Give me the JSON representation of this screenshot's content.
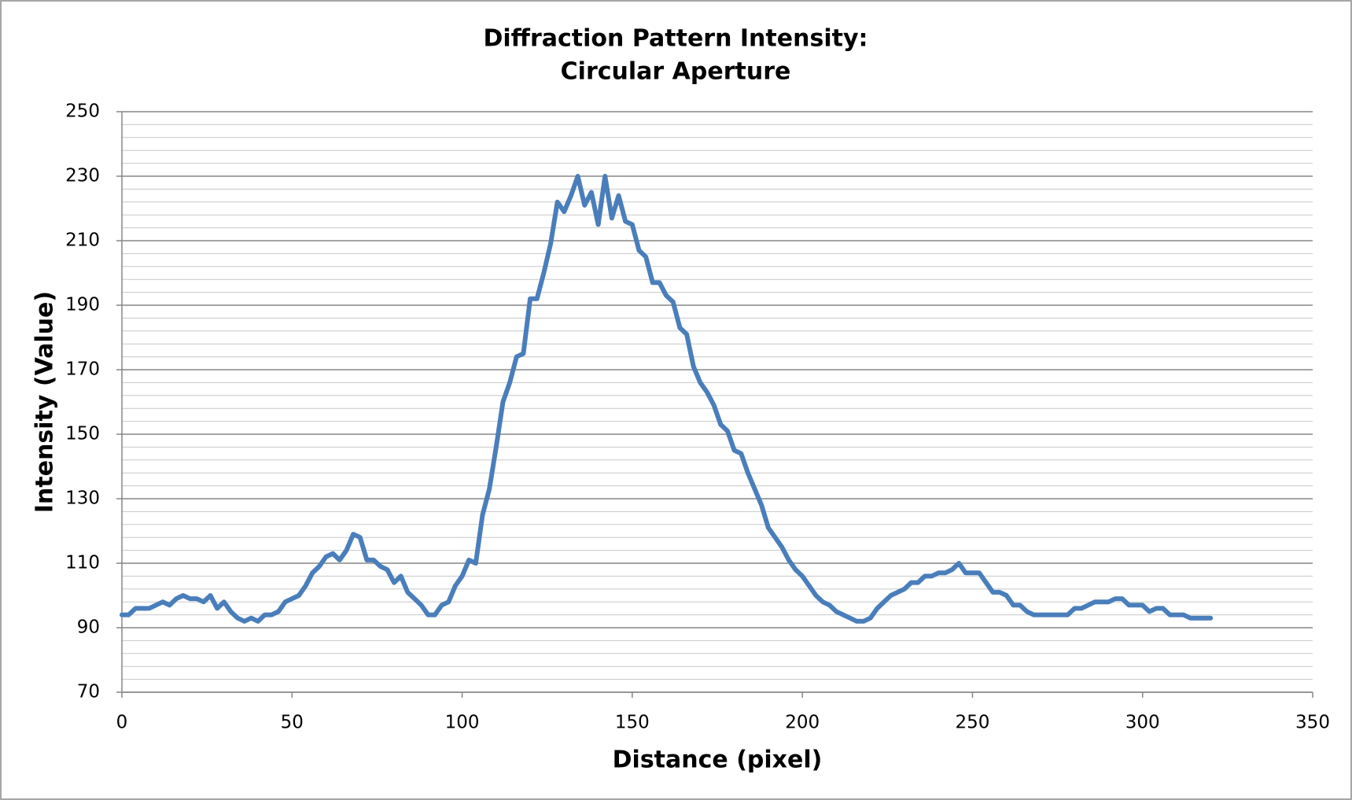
{
  "chart_data": {
    "type": "line",
    "title": [
      "Diffraction Pattern Intensity:",
      "Circular Aperture"
    ],
    "x_label": "Distance (pixel)",
    "y_label": "Intensity (Value)",
    "xlim": [
      0,
      350
    ],
    "xticks": [
      0,
      50,
      100,
      150,
      200,
      250,
      300,
      350
    ],
    "ylim": [
      70,
      250
    ],
    "yticks": [
      70,
      90,
      110,
      130,
      150,
      170,
      190,
      210,
      230,
      250
    ],
    "minor_yticks": [
      74,
      78,
      82,
      86,
      94,
      98,
      102,
      106,
      114,
      118,
      122,
      126,
      134,
      138,
      142,
      146,
      154,
      158,
      162,
      166,
      174,
      178,
      182,
      186,
      194,
      198,
      202,
      206,
      214,
      218,
      222,
      226,
      234,
      238,
      242,
      246
    ],
    "grid": true,
    "series": [
      {
        "color": "#4a7ebb",
        "x": [
          0,
          2,
          4,
          6,
          8,
          10,
          12,
          14,
          16,
          18,
          20,
          22,
          24,
          26,
          28,
          30,
          32,
          34,
          36,
          38,
          40,
          42,
          44,
          46,
          48,
          50,
          52,
          54,
          56,
          58,
          60,
          62,
          64,
          66,
          68,
          70,
          72,
          74,
          76,
          78,
          80,
          82,
          84,
          86,
          88,
          90,
          92,
          94,
          96,
          98,
          100,
          102,
          104,
          106,
          108,
          110,
          112,
          114,
          116,
          118,
          120,
          122,
          124,
          126,
          128,
          130,
          132,
          134,
          136,
          138,
          140,
          142,
          144,
          146,
          148,
          150,
          152,
          154,
          156,
          158,
          160,
          162,
          164,
          166,
          168,
          170,
          172,
          174,
          176,
          178,
          180,
          182,
          184,
          186,
          188,
          190,
          192,
          194,
          196,
          198,
          200,
          202,
          204,
          206,
          208,
          210,
          212,
          214,
          216,
          218,
          220,
          222,
          224,
          226,
          228,
          230,
          232,
          234,
          236,
          238,
          240,
          242,
          244,
          246,
          248,
          250,
          252,
          254,
          256,
          258,
          260,
          262,
          264,
          266,
          268,
          270,
          272,
          274,
          276,
          278,
          280,
          282,
          284,
          286,
          288,
          290,
          292,
          294,
          296,
          298,
          300,
          302,
          304,
          306,
          308,
          310,
          312,
          314,
          316,
          318,
          320
        ],
        "values": [
          94,
          94,
          96,
          96,
          96,
          97,
          98,
          97,
          99,
          100,
          99,
          99,
          98,
          100,
          96,
          98,
          95,
          93,
          92,
          93,
          92,
          94,
          94,
          95,
          98,
          99,
          100,
          103,
          107,
          109,
          112,
          113,
          111,
          114,
          119,
          118,
          111,
          111,
          109,
          108,
          104,
          106,
          101,
          99,
          97,
          94,
          94,
          97,
          98,
          103,
          106,
          111,
          110,
          125,
          133,
          146,
          160,
          166,
          174,
          175,
          192,
          192,
          200,
          209,
          222,
          219,
          224,
          230,
          221,
          225,
          215,
          230,
          217,
          224,
          216,
          215,
          207,
          205,
          197,
          197,
          193,
          191,
          183,
          181,
          171,
          166,
          163,
          159,
          153,
          151,
          145,
          144,
          138,
          133,
          128,
          121,
          118,
          115,
          111,
          108,
          106,
          103,
          100,
          98,
          97,
          95,
          94,
          93,
          92,
          92,
          93,
          96,
          98,
          100,
          101,
          102,
          104,
          104,
          106,
          106,
          107,
          107,
          108,
          110,
          107,
          107,
          107,
          104,
          101,
          101,
          100,
          97,
          97,
          95,
          94,
          94,
          94,
          94,
          94,
          94,
          96,
          96,
          97,
          98,
          98,
          98,
          99,
          99,
          97,
          97,
          97,
          95,
          96,
          96,
          94,
          94,
          94,
          93,
          93,
          93,
          93
        ]
      }
    ]
  }
}
